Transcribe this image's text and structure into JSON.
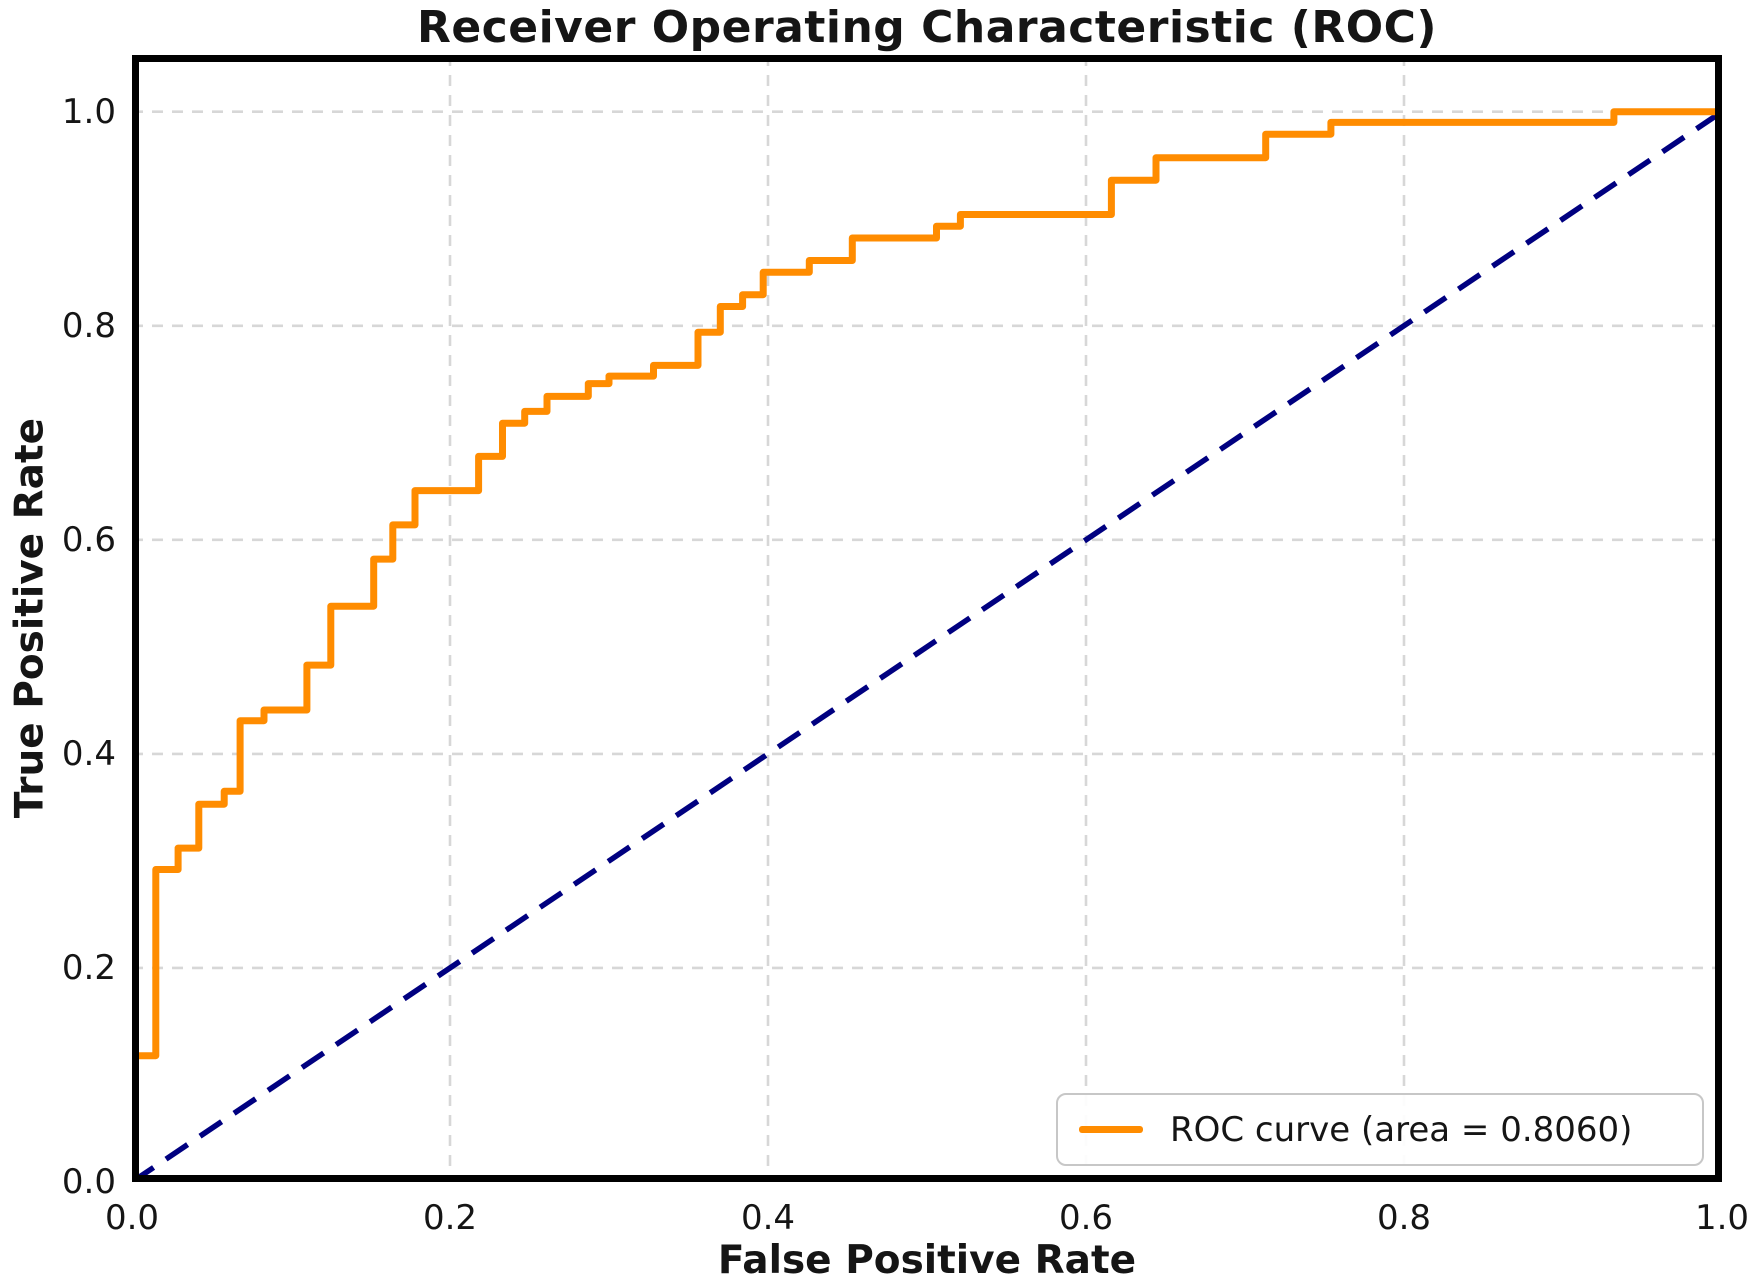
{
  "title": "Receiver Operating Characteristic (ROC)",
  "axes": {
    "xlabel": "False Positive Rate",
    "ylabel": "True Positive Rate",
    "x_ticks": [
      {
        "value": 0.0,
        "label": "0.0"
      },
      {
        "value": 0.2,
        "label": "0.2"
      },
      {
        "value": 0.4,
        "label": "0.4"
      },
      {
        "value": 0.6,
        "label": "0.6"
      },
      {
        "value": 0.8,
        "label": "0.8"
      },
      {
        "value": 1.0,
        "label": "1.0"
      }
    ],
    "y_ticks": [
      {
        "value": 0.0,
        "label": "0.0"
      },
      {
        "value": 0.2,
        "label": "0.2"
      },
      {
        "value": 0.4,
        "label": "0.4"
      },
      {
        "value": 0.6,
        "label": "0.6"
      },
      {
        "value": 0.8,
        "label": "0.8"
      },
      {
        "value": 1.0,
        "label": "1.0"
      }
    ]
  },
  "legend": {
    "position": "lower right",
    "entries": [
      {
        "label": "ROC curve (area = 0.8060)",
        "color": "#FF8C00"
      }
    ]
  },
  "colors": {
    "roc_curve": "#FF8C00",
    "chance_line": "#000080",
    "grid": "#d7d7d7",
    "frame": "#000000",
    "text": "#151515",
    "background": "#ffffff"
  },
  "chart_data": {
    "type": "line",
    "title": "Receiver Operating Characteristic (ROC)",
    "xlabel": "False Positive Rate",
    "ylabel": "True Positive Rate",
    "xlim": [
      0.0,
      1.0
    ],
    "ylim": [
      0.0,
      1.053
    ],
    "grid": true,
    "legend_position": "lower right",
    "auc": 0.806,
    "series": [
      {
        "name": "ROC curve (area = 0.8060)",
        "color": "#FF8C00",
        "style": "solid",
        "width": 7,
        "step": true,
        "points": [
          [
            0.0,
            0.0
          ],
          [
            0.0,
            0.118
          ],
          [
            0.015,
            0.118
          ],
          [
            0.015,
            0.292
          ],
          [
            0.029,
            0.292
          ],
          [
            0.029,
            0.312
          ],
          [
            0.042,
            0.312
          ],
          [
            0.042,
            0.353
          ],
          [
            0.058,
            0.353
          ],
          [
            0.058,
            0.365
          ],
          [
            0.068,
            0.365
          ],
          [
            0.068,
            0.431
          ],
          [
            0.083,
            0.431
          ],
          [
            0.083,
            0.441
          ],
          [
            0.11,
            0.441
          ],
          [
            0.11,
            0.483
          ],
          [
            0.125,
            0.483
          ],
          [
            0.125,
            0.538
          ],
          [
            0.152,
            0.538
          ],
          [
            0.152,
            0.582
          ],
          [
            0.164,
            0.582
          ],
          [
            0.164,
            0.614
          ],
          [
            0.178,
            0.614
          ],
          [
            0.178,
            0.646
          ],
          [
            0.218,
            0.646
          ],
          [
            0.218,
            0.678
          ],
          [
            0.233,
            0.678
          ],
          [
            0.233,
            0.709
          ],
          [
            0.247,
            0.709
          ],
          [
            0.247,
            0.72
          ],
          [
            0.261,
            0.72
          ],
          [
            0.261,
            0.734
          ],
          [
            0.287,
            0.734
          ],
          [
            0.287,
            0.746
          ],
          [
            0.3,
            0.746
          ],
          [
            0.3,
            0.753
          ],
          [
            0.328,
            0.753
          ],
          [
            0.328,
            0.763
          ],
          [
            0.356,
            0.763
          ],
          [
            0.356,
            0.794
          ],
          [
            0.37,
            0.794
          ],
          [
            0.37,
            0.818
          ],
          [
            0.384,
            0.818
          ],
          [
            0.384,
            0.829
          ],
          [
            0.397,
            0.829
          ],
          [
            0.397,
            0.85
          ],
          [
            0.426,
            0.85
          ],
          [
            0.426,
            0.861
          ],
          [
            0.453,
            0.861
          ],
          [
            0.453,
            0.882
          ],
          [
            0.506,
            0.882
          ],
          [
            0.506,
            0.893
          ],
          [
            0.521,
            0.893
          ],
          [
            0.521,
            0.904
          ],
          [
            0.616,
            0.904
          ],
          [
            0.616,
            0.936
          ],
          [
            0.644,
            0.936
          ],
          [
            0.644,
            0.957
          ],
          [
            0.713,
            0.957
          ],
          [
            0.713,
            0.979
          ],
          [
            0.754,
            0.979
          ],
          [
            0.754,
            0.99
          ],
          [
            0.932,
            0.99
          ],
          [
            0.932,
            1.0
          ],
          [
            1.0,
            1.0
          ]
        ]
      },
      {
        "name": "chance diagonal",
        "color": "#000080",
        "style": "dashed",
        "width": 5.5,
        "step": false,
        "points": [
          [
            0.0,
            0.0
          ],
          [
            1.0,
            1.0
          ]
        ]
      }
    ]
  }
}
